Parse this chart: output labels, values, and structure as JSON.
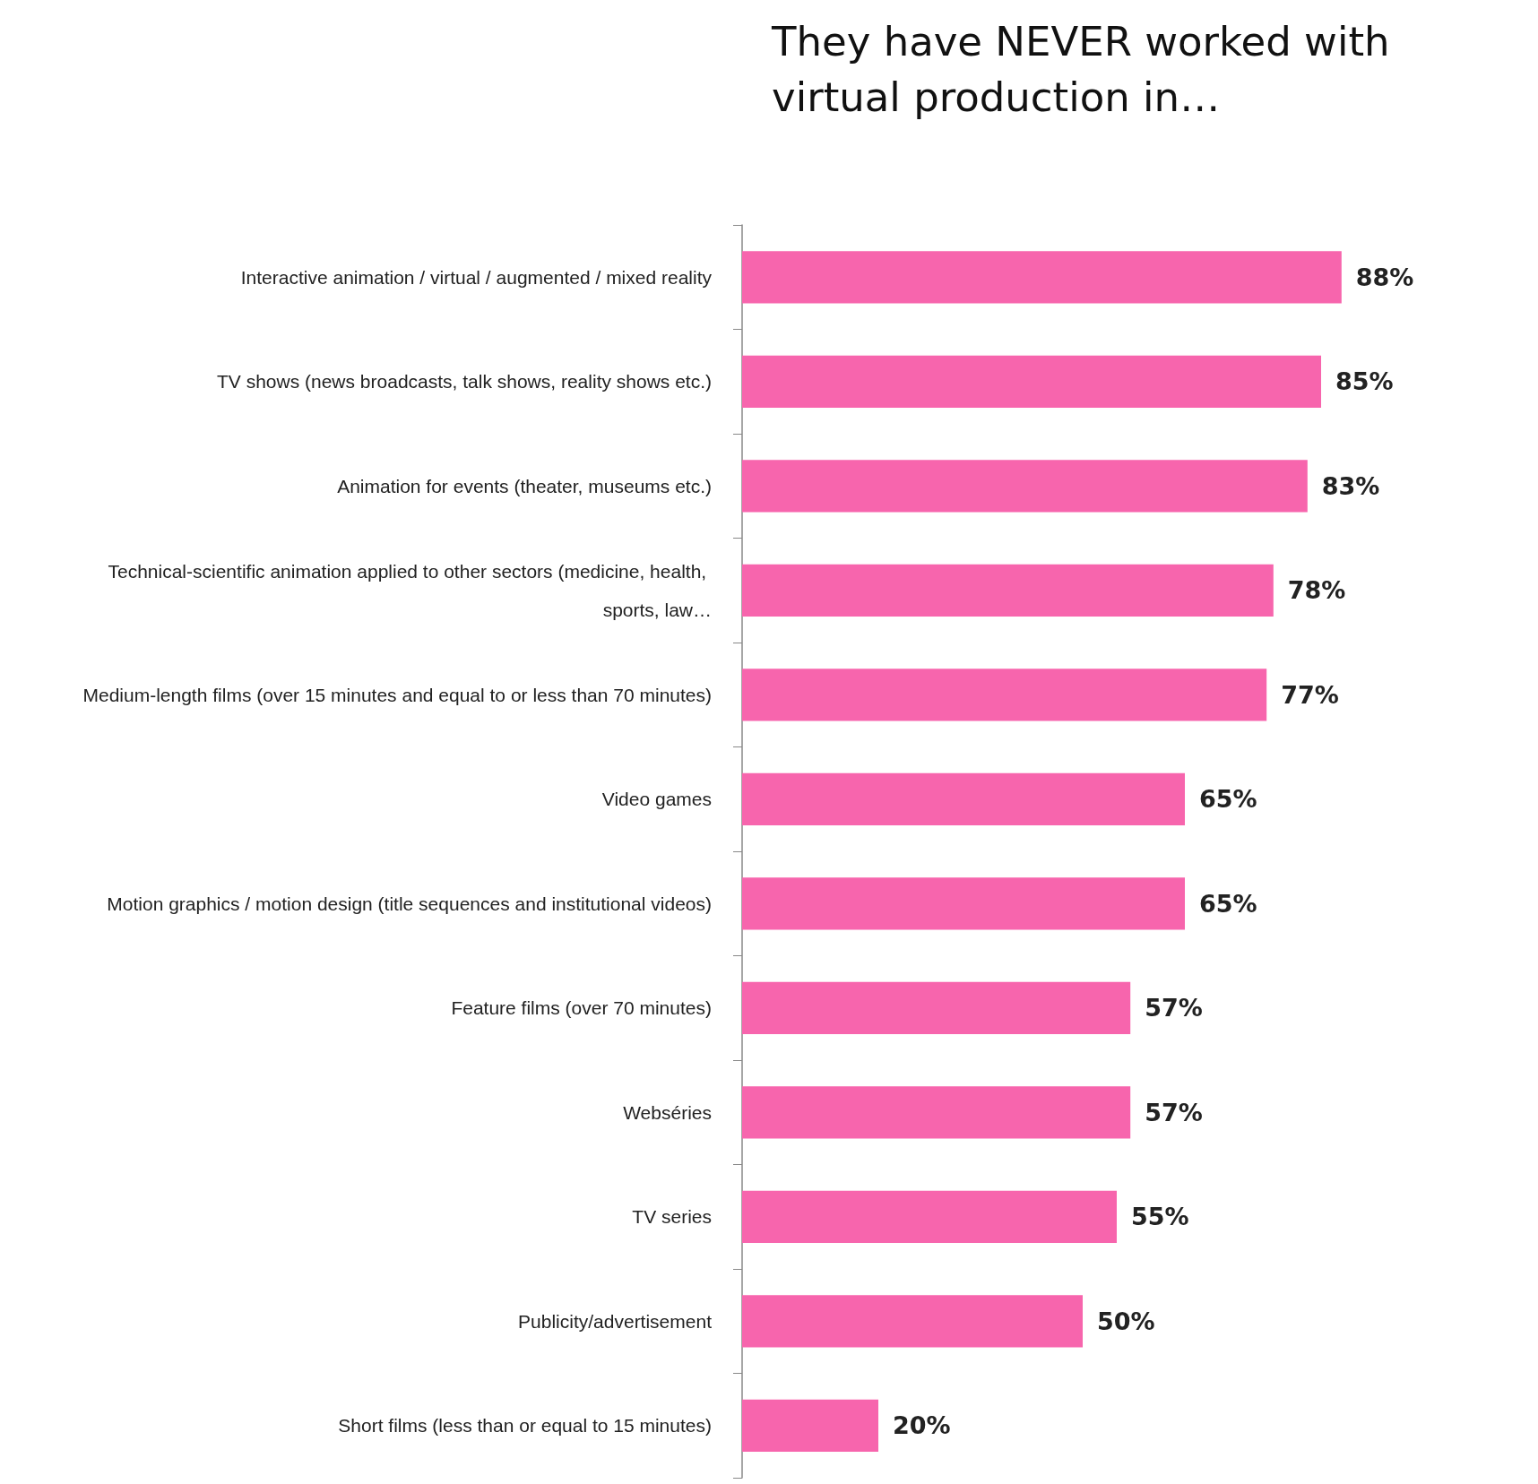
{
  "chart_data": {
    "type": "bar",
    "orientation": "horizontal",
    "title": "They have NEVER worked with virtual production in…",
    "categories": [
      "Interactive animation / virtual / augmented / mixed reality",
      "TV shows (news broadcasts, talk shows, reality shows etc.)",
      "Animation for events (theater, museums etc.)",
      "Technical-scientific animation applied to other sectors (medicine, health, sports, law…",
      "Medium-length films (over 15 minutes and equal to or less than 70 minutes)",
      "Video games",
      "Motion graphics / motion design (title sequences and institutional videos)",
      "Feature films (over 70 minutes)",
      "Webséries",
      "TV series",
      "Publicity/advertisement",
      "Short films (less than or equal to 15 minutes)"
    ],
    "values": [
      88,
      85,
      83,
      78,
      77,
      65,
      65,
      57,
      57,
      55,
      50,
      20
    ],
    "value_labels": [
      "88%",
      "85%",
      "83%",
      "78%",
      "77%",
      "65%",
      "65%",
      "57%",
      "57%",
      "55%",
      "50%",
      "20%"
    ],
    "color": "#f765ad"
  }
}
